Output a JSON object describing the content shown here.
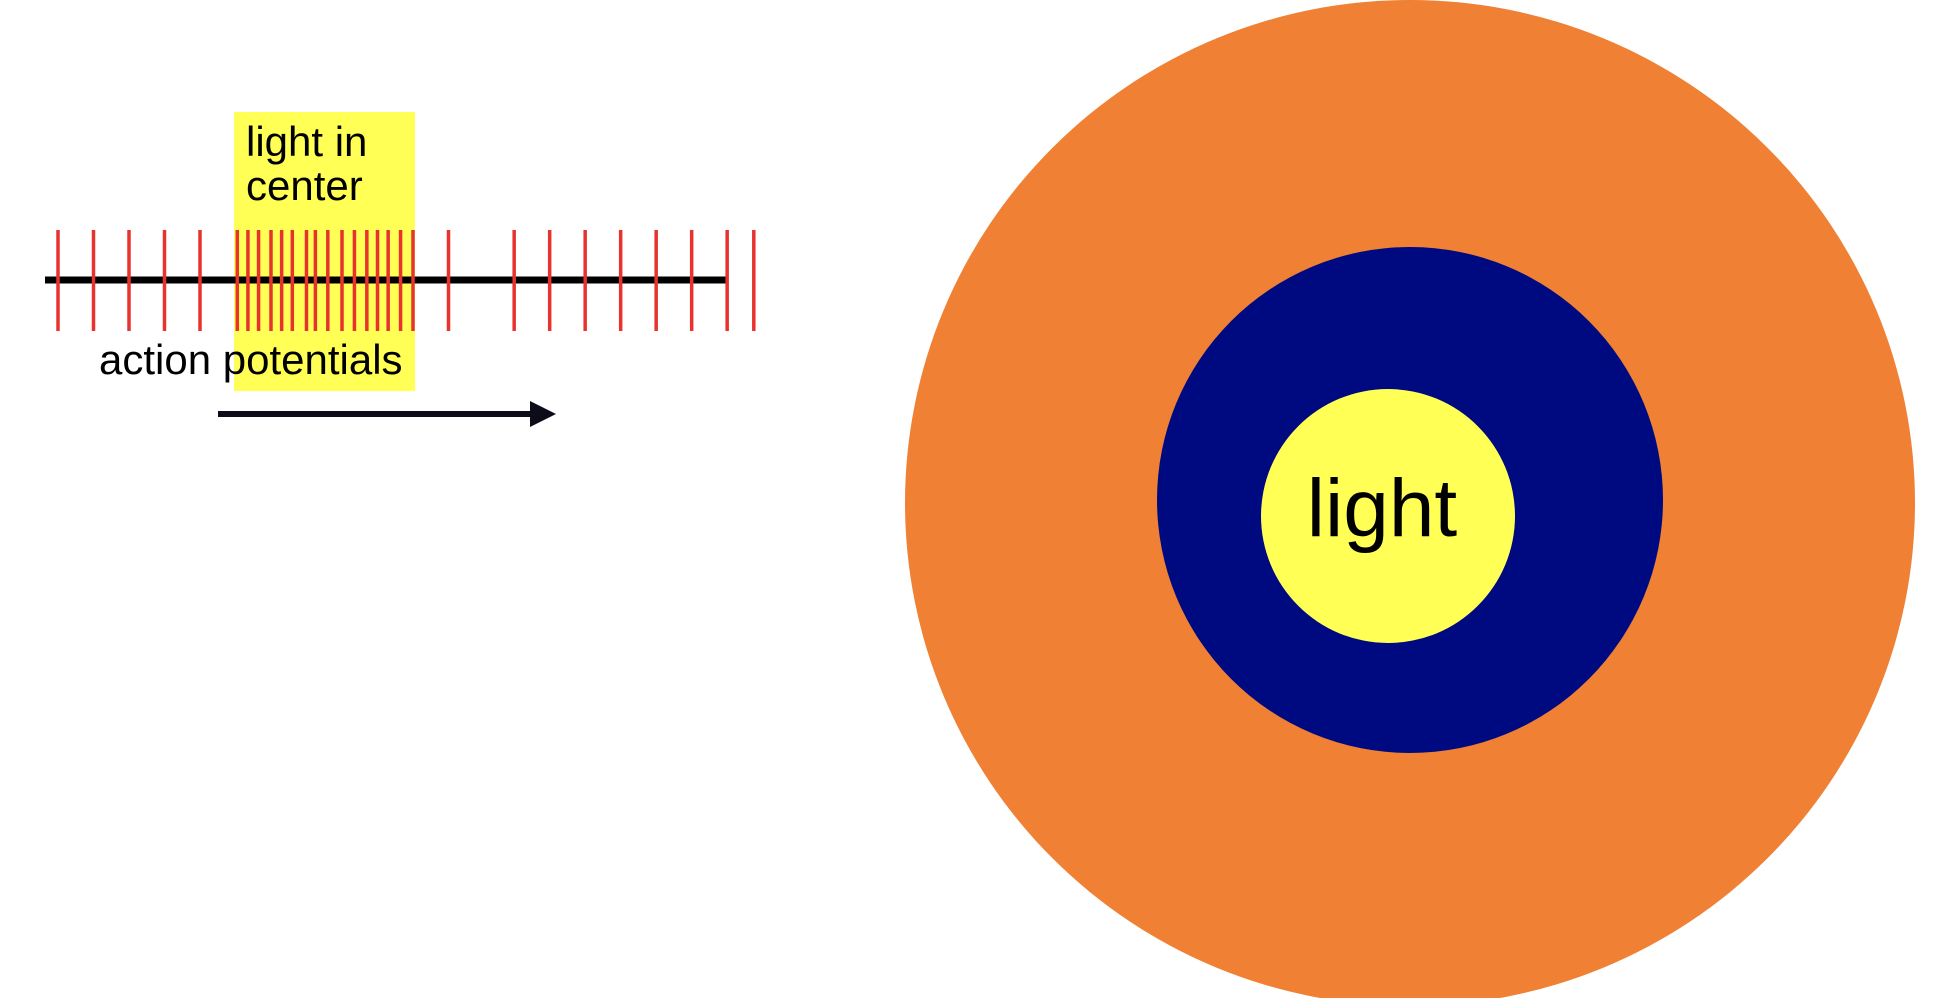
{
  "highlight_label_line1": "light in",
  "highlight_label_line2": "center",
  "axis_label": "action potentials",
  "center_label": "light",
  "spikes": {
    "color": "#e8322e",
    "baseline": [
      {
        "t": 0
      },
      {
        "t": 1
      },
      {
        "t": 2
      },
      {
        "t": 3
      },
      {
        "t": 4
      },
      {
        "t": 5.05
      },
      {
        "t": 5.35
      },
      {
        "t": 5.65
      },
      {
        "t": 6.0
      },
      {
        "t": 6.3
      },
      {
        "t": 6.6
      },
      {
        "t": 7.0
      },
      {
        "t": 7.25
      },
      {
        "t": 7.6
      },
      {
        "t": 8.0
      },
      {
        "t": 8.35
      },
      {
        "t": 8.7
      },
      {
        "t": 9.0
      },
      {
        "t": 9.3
      },
      {
        "t": 9.65
      },
      {
        "t": 10.0
      },
      {
        "t": 11.0
      },
      {
        "t": 12.85
      },
      {
        "t": 13.85
      },
      {
        "t": 14.85
      },
      {
        "t": 15.85
      },
      {
        "t": 16.85
      },
      {
        "t": 17.85
      },
      {
        "t": 18.85
      },
      {
        "t": 19.6
      }
    ]
  },
  "colors": {
    "highlight": "#ffff55",
    "surround": "#ef8034",
    "ring": "#000a80",
    "center": "#ffff55",
    "line": "#000000",
    "arrow": "#0d0d1a"
  }
}
